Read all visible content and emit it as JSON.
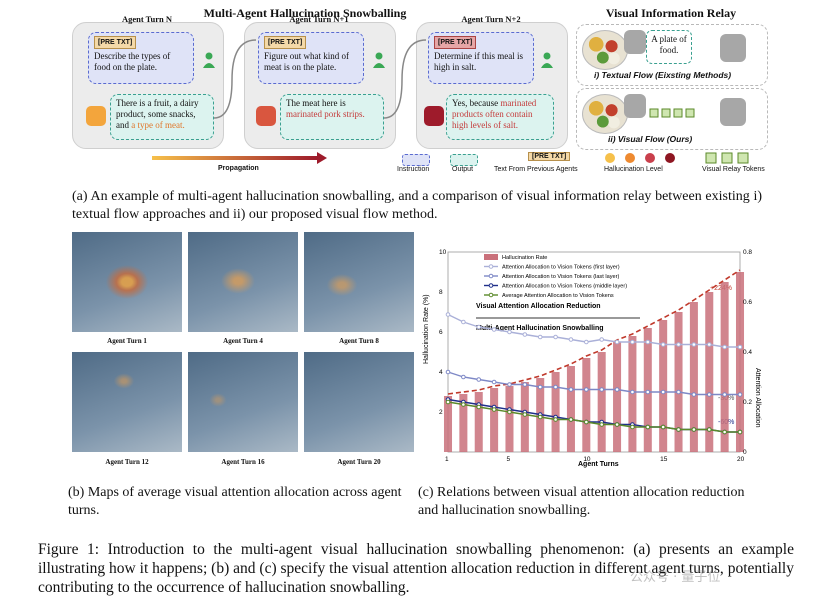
{
  "panel_a": {
    "title": "Multi-Agent Hallucination Snowballing",
    "relay_title": "Visual Information Relay",
    "turns": [
      {
        "label": "Agent Turn N",
        "instruction": "Describe the types of food on the plate.",
        "output_plain": "There is a fruit, a dairy product, some snacks, and ",
        "output_hl": "a type of meat."
      },
      {
        "label": "Agent Turn N+1",
        "instruction": "Figure out what kind of meat is on the plate.",
        "output_plain": "The meat here is ",
        "output_hl": "marinated pork strips."
      },
      {
        "label": "Agent Turn N+2",
        "instruction": "Determine if this meal is high in salt.",
        "output_plain": "Yes, because ",
        "output_hl": "marinated products often contain high levels of salt."
      }
    ],
    "pre_txt": "[PRE TXT]",
    "propagation": "Propagation",
    "relay_text_bubble": "A plate of food.",
    "flow_textual": "i) Textual Flow (Eixsting Methods)",
    "flow_visual": "ii) Visual Flow (Ours)",
    "legend": {
      "instruction": "Instruction",
      "output": "Output",
      "pre_txt_desc": "Text From Previous Agents",
      "hallucination": "Hallucination Level",
      "relay_tokens": "Visual Relay Tokens"
    },
    "colors": {
      "instruction": "#5a6bd0",
      "output": "#3aa090",
      "propagation_start": "#f6c04a",
      "propagation_end": "#9e1b2b"
    }
  },
  "caption_a": "(a) An example of multi-agent hallucination snowballing, and a comparison of visual information relay between existing i) textual flow approaches and ii) our proposed visual flow method.",
  "panel_b": {
    "labels": [
      "Agent Turn 1",
      "Agent Turn 4",
      "Agent Turn 8",
      "Agent Turn 12",
      "Agent Turn 16",
      "Agent Turn 20"
    ]
  },
  "caption_b": "(b) Maps of average visual attention allocation across agent turns.",
  "caption_c": "(c) Relations between visual attention allocation reduction and hallucination snowballing.",
  "figure_caption": "Figure 1: Introduction to the multi-agent visual hallucination snowballing phenomenon: (a) presents an example illustrating how it happens; (b) and (c) specify the visual attention allocation reduction in different agent turns, potentially contributing to the occurrence of hallucination snowballing.",
  "watermark": "公众号 · 量子位",
  "chart_data": {
    "type": "bar",
    "xlabel": "Agent Turns",
    "ylabel": "Hallucination Rate (%)",
    "ylabel_right": "Attention Allocation",
    "xlim": [
      1,
      20
    ],
    "ylim": [
      0,
      10
    ],
    "ylim_right": [
      0,
      0.8
    ],
    "x_ticks": [
      1,
      5,
      10,
      15,
      20
    ],
    "y_ticks": [
      2,
      4,
      6,
      8,
      10
    ],
    "y_ticks_right": [
      0,
      0.2,
      0.4,
      0.6,
      0.8
    ],
    "x": [
      1,
      2,
      3,
      4,
      5,
      6,
      7,
      8,
      9,
      10,
      11,
      12,
      13,
      14,
      15,
      16,
      17,
      18,
      19,
      20
    ],
    "legend_title_line1": "Visual Attention Allocation Reduction",
    "legend_title_line2": "Multi-Agent Hallucination Snowballing",
    "annotations": {
      "top": "+224%",
      "mid_right": "-30%",
      "lower_right": "-60%"
    },
    "series": [
      {
        "name": "Hallucination Rate",
        "axis": "left",
        "kind": "bar",
        "color": "#c9707a",
        "values": [
          2.8,
          2.9,
          3.0,
          3.2,
          3.3,
          3.5,
          3.7,
          4.0,
          4.3,
          4.7,
          5.0,
          5.5,
          5.8,
          6.2,
          6.6,
          7.0,
          7.5,
          8.0,
          8.5,
          9.0
        ]
      },
      {
        "name": "Attention Allocation to Vision Tokens (first layer)",
        "axis": "right",
        "kind": "line",
        "color": "#aab0d8",
        "values": [
          0.55,
          0.52,
          0.5,
          0.49,
          0.48,
          0.47,
          0.46,
          0.46,
          0.45,
          0.44,
          0.45,
          0.44,
          0.44,
          0.44,
          0.43,
          0.43,
          0.43,
          0.43,
          0.42,
          0.42
        ]
      },
      {
        "name": "Attention Allocation to Vision Tokens (last layer)",
        "axis": "right",
        "kind": "line",
        "color": "#7e88c6",
        "values": [
          0.32,
          0.3,
          0.29,
          0.28,
          0.27,
          0.27,
          0.26,
          0.26,
          0.25,
          0.25,
          0.25,
          0.25,
          0.24,
          0.24,
          0.24,
          0.24,
          0.23,
          0.23,
          0.23,
          0.23
        ]
      },
      {
        "name": "Attention Allocation to Vision Tokens (middle layer)",
        "axis": "right",
        "kind": "line",
        "color": "#1f2f8a",
        "values": [
          0.21,
          0.2,
          0.19,
          0.18,
          0.17,
          0.16,
          0.15,
          0.14,
          0.13,
          0.12,
          0.12,
          0.11,
          0.11,
          0.1,
          0.1,
          0.09,
          0.09,
          0.09,
          0.08,
          0.08
        ]
      },
      {
        "name": "Average Attention Allocation to Vision Tokens",
        "axis": "right",
        "kind": "line",
        "color": "#5b8a2a",
        "values": [
          0.2,
          0.19,
          0.18,
          0.17,
          0.16,
          0.15,
          0.14,
          0.13,
          0.13,
          0.12,
          0.11,
          0.11,
          0.1,
          0.1,
          0.1,
          0.09,
          0.09,
          0.09,
          0.08,
          0.08
        ]
      }
    ],
    "grid": false,
    "legend_position": "top-left"
  }
}
